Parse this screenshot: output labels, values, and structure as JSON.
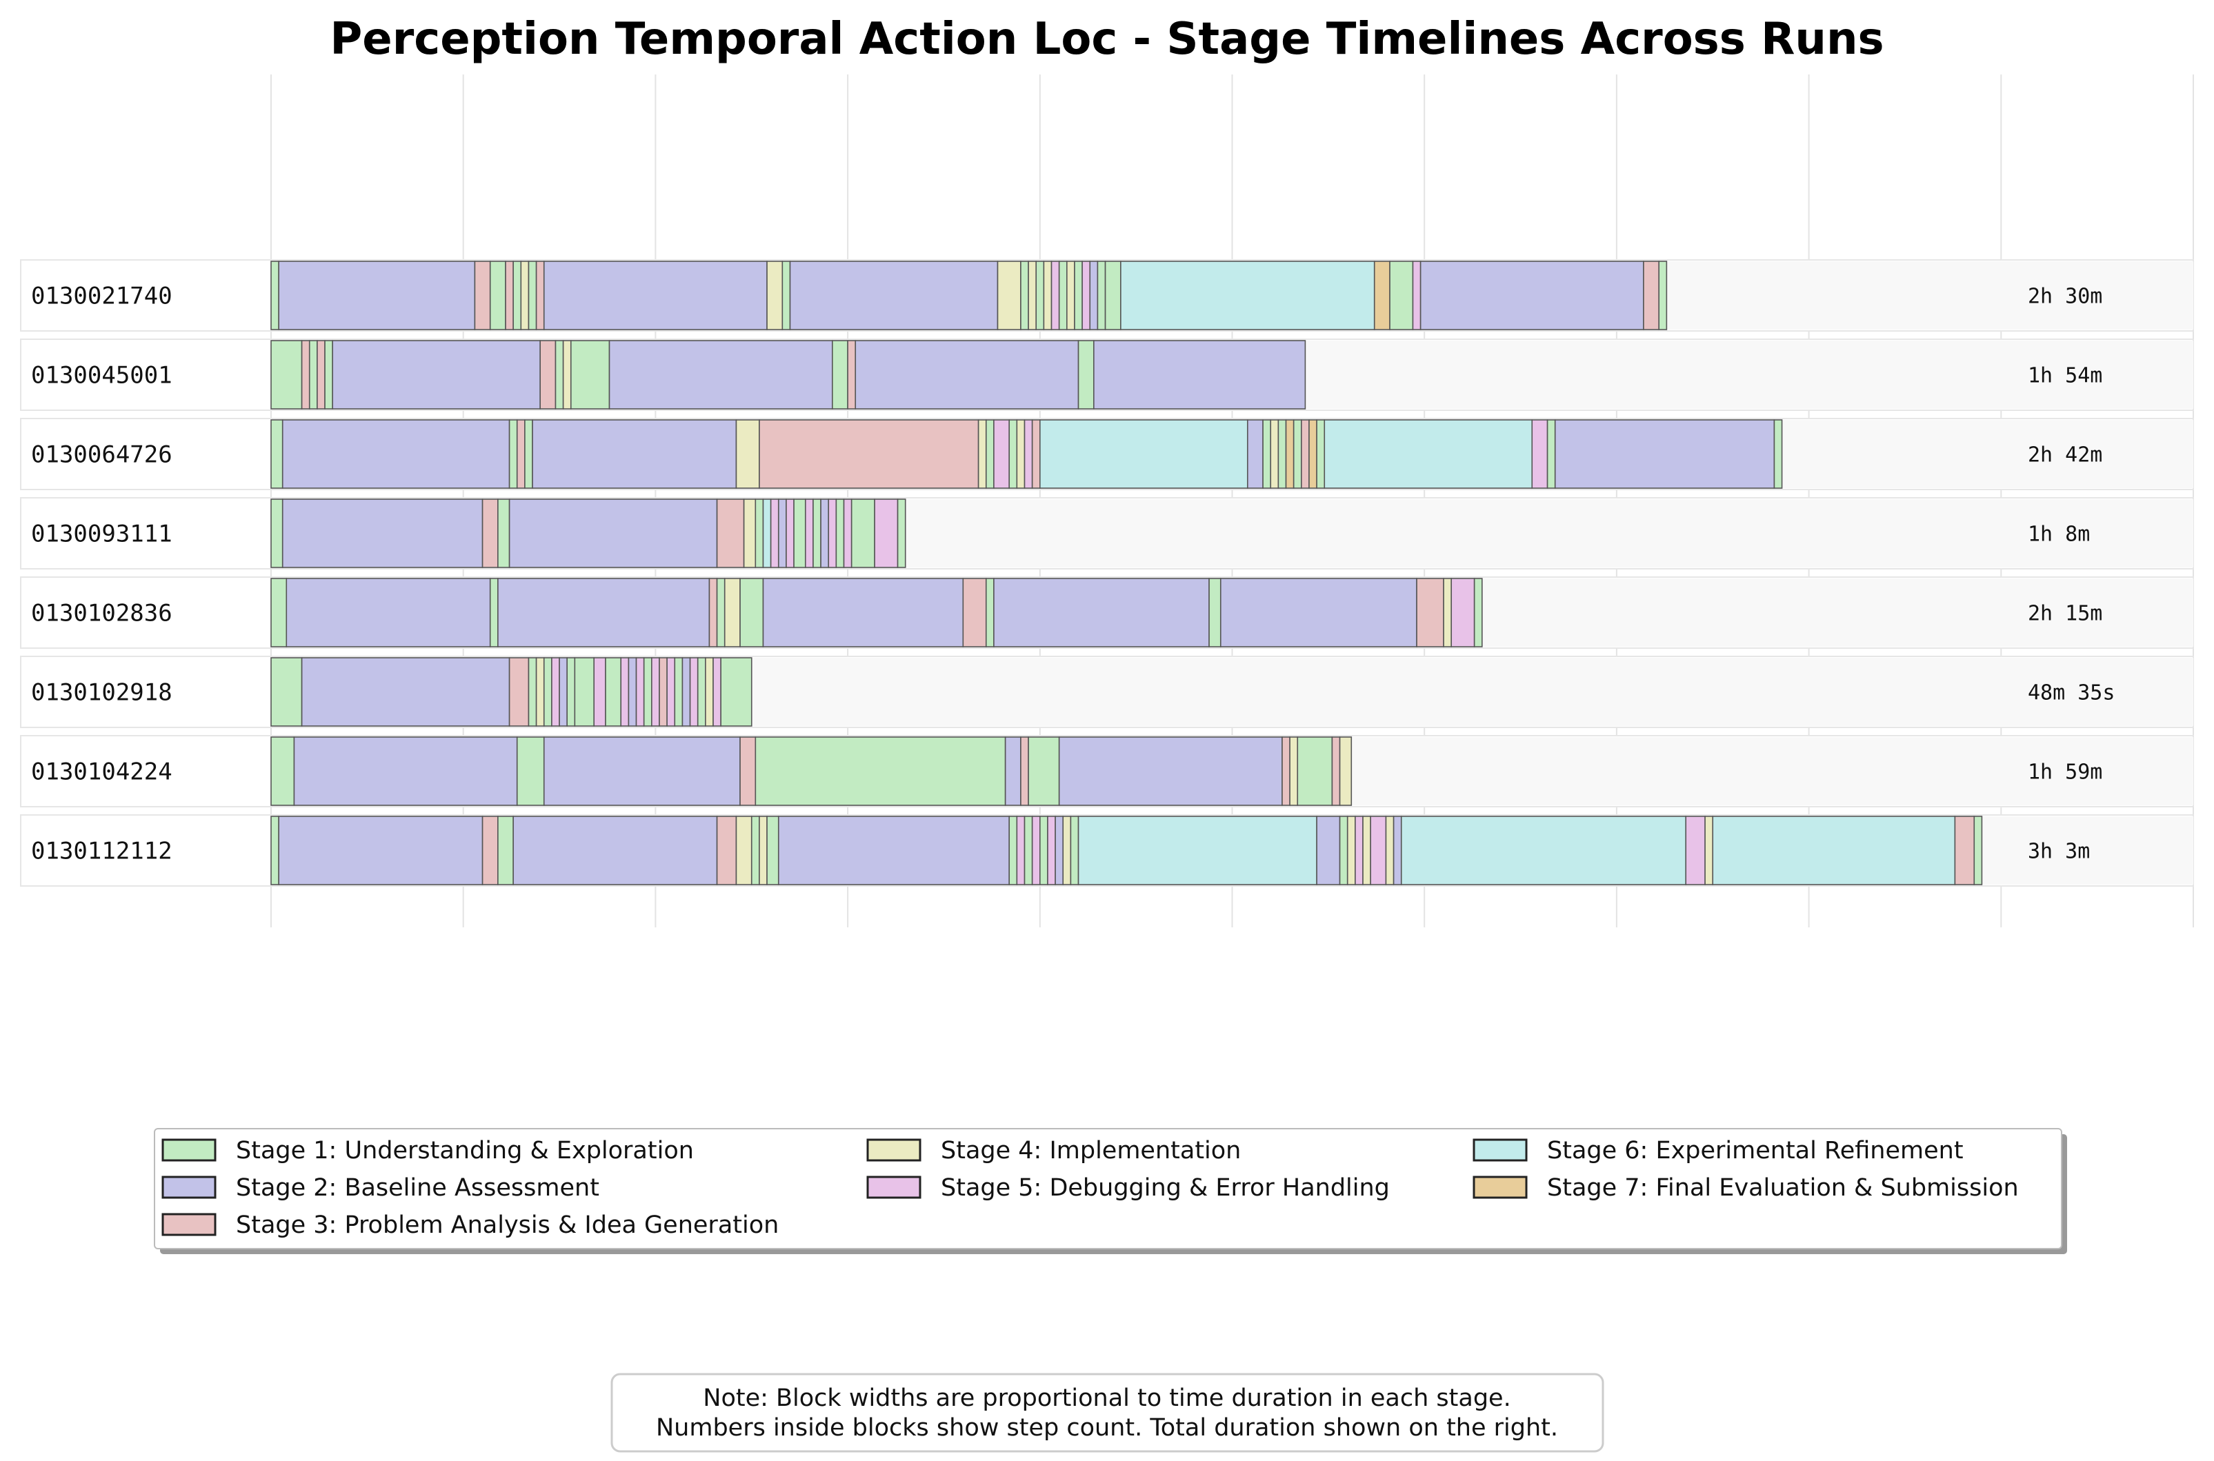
{
  "chart_data": {
    "type": "bar",
    "title": "Perception Temporal Action Loc - Stage Timelines Across Runs",
    "stages": [
      {
        "id": 1,
        "name": "Stage 1: Understanding & Exploration",
        "color": "#c2ebc2"
      },
      {
        "id": 2,
        "name": "Stage 2: Baseline Assessment",
        "color": "#c2c2e8"
      },
      {
        "id": 3,
        "name": "Stage 3: Problem Analysis & Idea Generation",
        "color": "#e8c2c2"
      },
      {
        "id": 4,
        "name": "Stage 4: Implementation",
        "color": "#ebebc2"
      },
      {
        "id": 5,
        "name": "Stage 5: Debugging & Error Handling",
        "color": "#e8c2e8"
      },
      {
        "id": 6,
        "name": "Stage 6: Experimental Refinement",
        "color": "#c2ebeb"
      },
      {
        "id": 7,
        "name": "Stage 7: Final Evaluation & Submission",
        "color": "#e8cd9a"
      }
    ],
    "runs": [
      {
        "id": "0130021740",
        "duration": "2h 30m",
        "segments": [
          [
            1,
            1
          ],
          [
            2,
            25.5
          ],
          [
            3,
            2
          ],
          [
            1,
            2
          ],
          [
            3,
            1
          ],
          [
            1,
            1
          ],
          [
            4,
            1
          ],
          [
            1,
            1
          ],
          [
            3,
            1
          ],
          [
            2,
            29
          ],
          [
            4,
            2
          ],
          [
            1,
            1
          ],
          [
            2,
            27
          ],
          [
            4,
            3
          ],
          [
            1,
            1
          ],
          [
            4,
            1
          ],
          [
            1,
            1
          ],
          [
            4,
            1
          ],
          [
            5,
            1
          ],
          [
            1,
            1
          ],
          [
            4,
            1
          ],
          [
            1,
            1
          ],
          [
            5,
            1
          ],
          [
            2,
            1
          ],
          [
            1,
            1
          ],
          [
            1,
            2
          ],
          [
            6,
            33
          ],
          [
            7,
            2
          ],
          [
            1,
            3
          ],
          [
            5,
            1
          ],
          [
            2,
            29
          ],
          [
            3,
            2
          ],
          [
            1,
            1
          ]
        ]
      },
      {
        "id": "0130045001",
        "duration": "1h 54m",
        "segments": [
          [
            1,
            4
          ],
          [
            3,
            1
          ],
          [
            1,
            1
          ],
          [
            3,
            1
          ],
          [
            1,
            1
          ],
          [
            2,
            27
          ],
          [
            3,
            2
          ],
          [
            1,
            1
          ],
          [
            4,
            1
          ],
          [
            1,
            5
          ],
          [
            2,
            29
          ],
          [
            1,
            2
          ],
          [
            3,
            1
          ],
          [
            2,
            29
          ],
          [
            1,
            2
          ],
          [
            2,
            27.5
          ]
        ]
      },
      {
        "id": "0130064726",
        "duration": "2h 42m",
        "segments": [
          [
            1,
            1.5
          ],
          [
            2,
            29.5
          ],
          [
            1,
            1
          ],
          [
            3,
            1
          ],
          [
            1,
            1
          ],
          [
            2,
            26.5
          ],
          [
            4,
            3
          ],
          [
            3,
            28.5
          ],
          [
            4,
            1
          ],
          [
            1,
            1
          ],
          [
            5,
            2
          ],
          [
            1,
            1
          ],
          [
            4,
            1
          ],
          [
            5,
            1
          ],
          [
            3,
            1
          ],
          [
            6,
            27
          ],
          [
            2,
            2
          ],
          [
            1,
            1
          ],
          [
            4,
            1
          ],
          [
            1,
            1
          ],
          [
            7,
            1
          ],
          [
            1,
            1
          ],
          [
            3,
            1
          ],
          [
            7,
            1
          ],
          [
            1,
            1
          ],
          [
            6,
            27
          ],
          [
            5,
            2
          ],
          [
            1,
            1
          ],
          [
            2,
            28.5
          ],
          [
            1,
            1
          ]
        ]
      },
      {
        "id": "0130093111",
        "duration": "1h 8m",
        "segments": [
          [
            1,
            1.5
          ],
          [
            2,
            26
          ],
          [
            3,
            2
          ],
          [
            1,
            1.5
          ],
          [
            2,
            27
          ],
          [
            3,
            3.5
          ],
          [
            4,
            1.5
          ],
          [
            1,
            1
          ],
          [
            6,
            1
          ],
          [
            5,
            1
          ],
          [
            2,
            1
          ],
          [
            5,
            1
          ],
          [
            1,
            1.5
          ],
          [
            5,
            1
          ],
          [
            1,
            1
          ],
          [
            2,
            1
          ],
          [
            5,
            1
          ],
          [
            1,
            1
          ],
          [
            5,
            1
          ],
          [
            1,
            3
          ],
          [
            5,
            3
          ],
          [
            1,
            1
          ]
        ]
      },
      {
        "id": "0130102836",
        "duration": "2h 15m",
        "segments": [
          [
            1,
            2
          ],
          [
            2,
            26.5
          ],
          [
            1,
            1
          ],
          [
            2,
            27.5
          ],
          [
            3,
            1
          ],
          [
            1,
            1
          ],
          [
            4,
            2
          ],
          [
            1,
            3
          ],
          [
            2,
            26
          ],
          [
            3,
            3
          ],
          [
            1,
            1
          ],
          [
            2,
            28
          ],
          [
            1,
            1.5
          ],
          [
            2,
            25.5
          ],
          [
            3,
            3.5
          ],
          [
            4,
            1
          ],
          [
            5,
            3
          ],
          [
            1,
            1
          ]
        ]
      },
      {
        "id": "0130102918",
        "duration": "48m 35s",
        "segments": [
          [
            1,
            4
          ],
          [
            2,
            27
          ],
          [
            3,
            2.5
          ],
          [
            1,
            1
          ],
          [
            4,
            1
          ],
          [
            1,
            1
          ],
          [
            5,
            1
          ],
          [
            2,
            1
          ],
          [
            1,
            1
          ],
          [
            1,
            2.5
          ],
          [
            5,
            1.5
          ],
          [
            1,
            2
          ],
          [
            5,
            1
          ],
          [
            2,
            1
          ],
          [
            5,
            1
          ],
          [
            1,
            1
          ],
          [
            5,
            1
          ],
          [
            3,
            1
          ],
          [
            5,
            1
          ],
          [
            1,
            1
          ],
          [
            2,
            1
          ],
          [
            5,
            1
          ],
          [
            1,
            1
          ],
          [
            4,
            1
          ],
          [
            5,
            1
          ],
          [
            1,
            4
          ]
        ]
      },
      {
        "id": "0130104224",
        "duration": "1h 59m",
        "segments": [
          [
            1,
            3
          ],
          [
            2,
            29
          ],
          [
            1,
            3.5
          ],
          [
            2,
            25.5
          ],
          [
            3,
            2
          ],
          [
            1,
            32.5
          ],
          [
            2,
            2
          ],
          [
            3,
            1
          ],
          [
            1,
            4
          ],
          [
            2,
            29
          ],
          [
            3,
            1
          ],
          [
            4,
            1
          ],
          [
            1,
            4.5
          ],
          [
            3,
            1
          ],
          [
            4,
            1.5
          ]
        ]
      },
      {
        "id": "0130112112",
        "duration": "3h 3m",
        "segments": [
          [
            1,
            1
          ],
          [
            2,
            26.5
          ],
          [
            3,
            2
          ],
          [
            1,
            2
          ],
          [
            2,
            26.5
          ],
          [
            3,
            2.5
          ],
          [
            4,
            2
          ],
          [
            1,
            1
          ],
          [
            4,
            1
          ],
          [
            1,
            1.5
          ],
          [
            2,
            30
          ],
          [
            1,
            1
          ],
          [
            5,
            1
          ],
          [
            1,
            1
          ],
          [
            5,
            1
          ],
          [
            1,
            1
          ],
          [
            5,
            1
          ],
          [
            2,
            1
          ],
          [
            4,
            1
          ],
          [
            1,
            1
          ],
          [
            6,
            31
          ],
          [
            2,
            3
          ],
          [
            1,
            1
          ],
          [
            4,
            1
          ],
          [
            5,
            1
          ],
          [
            4,
            1
          ],
          [
            5,
            2
          ],
          [
            4,
            1
          ],
          [
            2,
            1
          ],
          [
            6,
            37
          ],
          [
            5,
            2.5
          ],
          [
            4,
            1
          ],
          [
            6,
            31.5
          ],
          [
            3,
            2.5
          ],
          [
            1,
            1
          ]
        ]
      }
    ],
    "legend_columns": [
      [
        1,
        2,
        3
      ],
      [
        4,
        5
      ],
      [
        6,
        7
      ]
    ],
    "note_lines": [
      "Note: Block widths are proportional to time duration in each stage.",
      "Numbers inside blocks show step count. Total duration shown on the right."
    ],
    "xlim": [
      0,
      250
    ],
    "grid": "vertical",
    "legend_placement": "bottom-center"
  }
}
